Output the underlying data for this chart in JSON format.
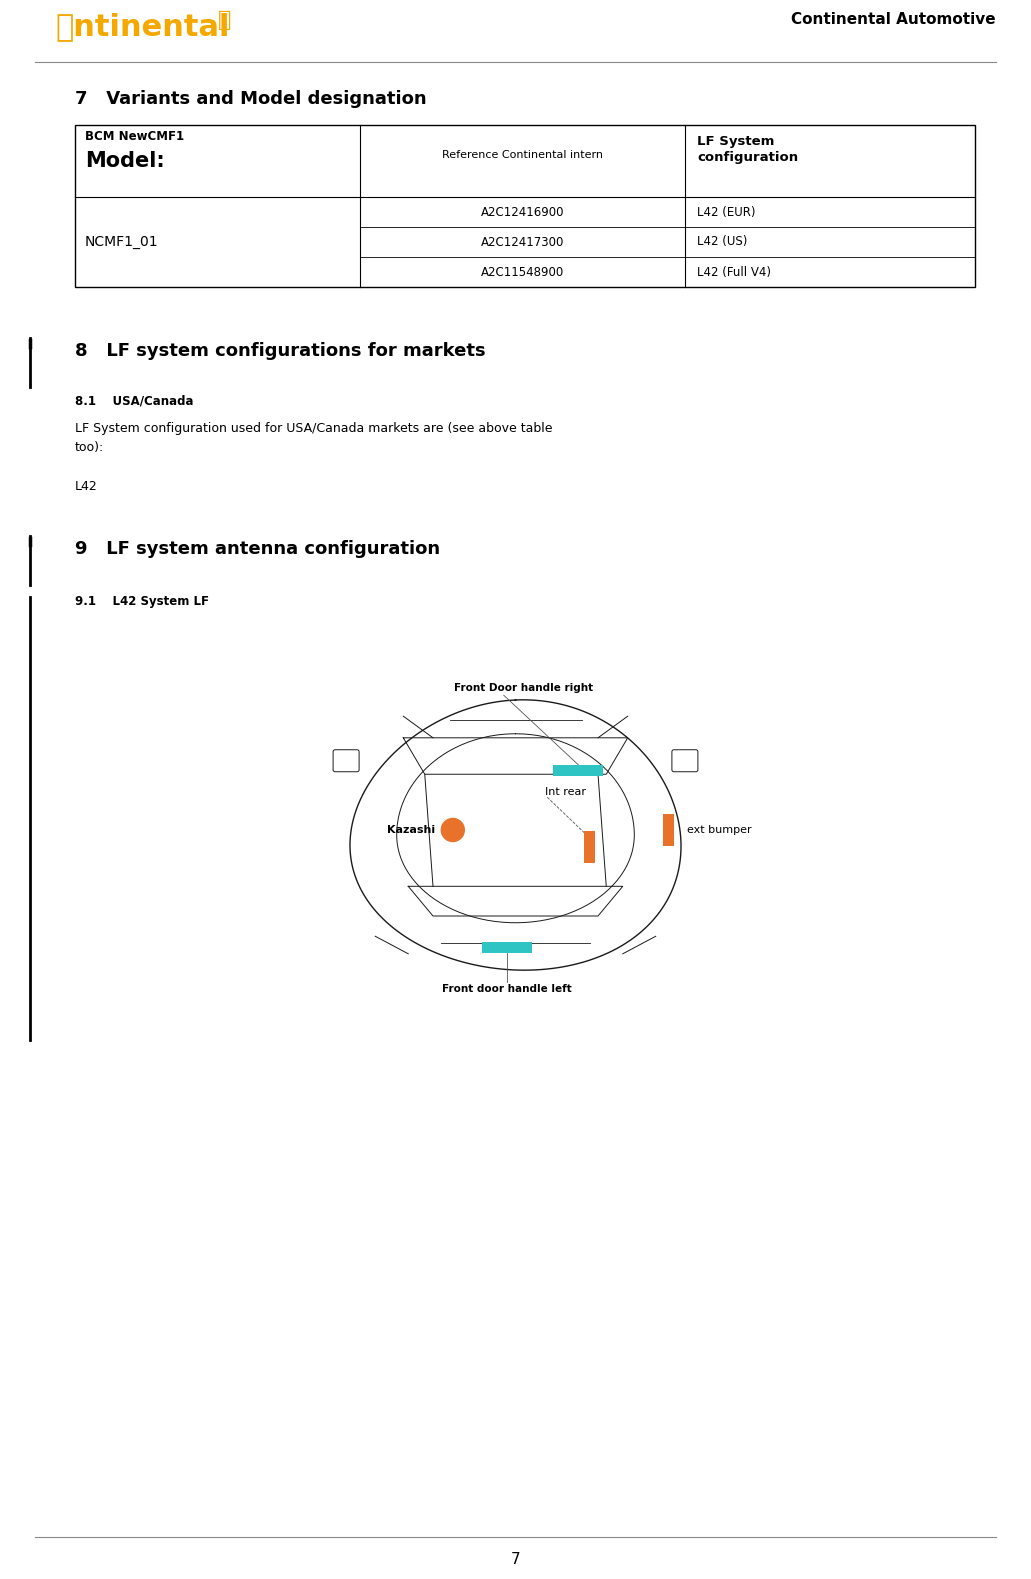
{
  "page_width": 10.31,
  "page_height": 15.79,
  "bg_color": "#ffffff",
  "continental_color": "#f5a800",
  "header_text": "Continental Automotive",
  "section7_title": "7   Variants and Model designation",
  "section8_title": "8   LF system configurations for markets",
  "section81_title": "8.1    USA/Canada",
  "section81_body": "LF System configuration used for USA/Canada markets are (see above table\ntoo):",
  "section81_item": "L42",
  "section9_title": "9   LF system antenna configuration",
  "section91_title": "9.1    L42 System LF",
  "table_col1_row2": "NCMF1_01",
  "table_data": [
    [
      "A2C12416900",
      "L42 (EUR)"
    ],
    [
      "A2C12417300",
      "L42 (US)"
    ],
    [
      "A2C11548900",
      "L42 (Full V4)"
    ]
  ],
  "page_number": "7",
  "lm": 0.75,
  "cw": 9.0,
  "car_color": "#1a1a1a",
  "teal_color": "#2ec4c4",
  "orange_color": "#e8722a"
}
